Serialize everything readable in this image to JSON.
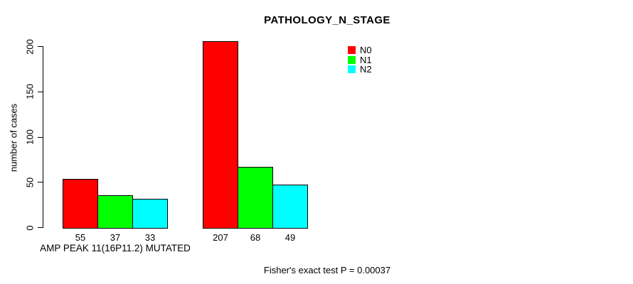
{
  "chart_data": {
    "type": "bar",
    "title": "PATHOLOGY_N_STAGE",
    "ylabel": "number of cases",
    "ylim": [
      0,
      200
    ],
    "yticks": [
      0,
      50,
      100,
      150,
      200
    ],
    "grid": false,
    "background": "#ffffff",
    "bar_border_color": "#000000",
    "legend_position": "top-right-inside",
    "series": [
      {
        "name": "N0",
        "color": "#ff0000"
      },
      {
        "name": "N1",
        "color": "#00ff00"
      },
      {
        "name": "N2",
        "color": "#00ffff"
      }
    ],
    "groups": [
      {
        "label": "AMP PEAK 11(16P11.2) MUTATED",
        "values": [
          55,
          37,
          33
        ]
      },
      {
        "label": "",
        "values": [
          207,
          68,
          49
        ]
      }
    ],
    "bar_value_labels_shown": true,
    "annotation": "Fisher's exact test P = 0.00037"
  }
}
